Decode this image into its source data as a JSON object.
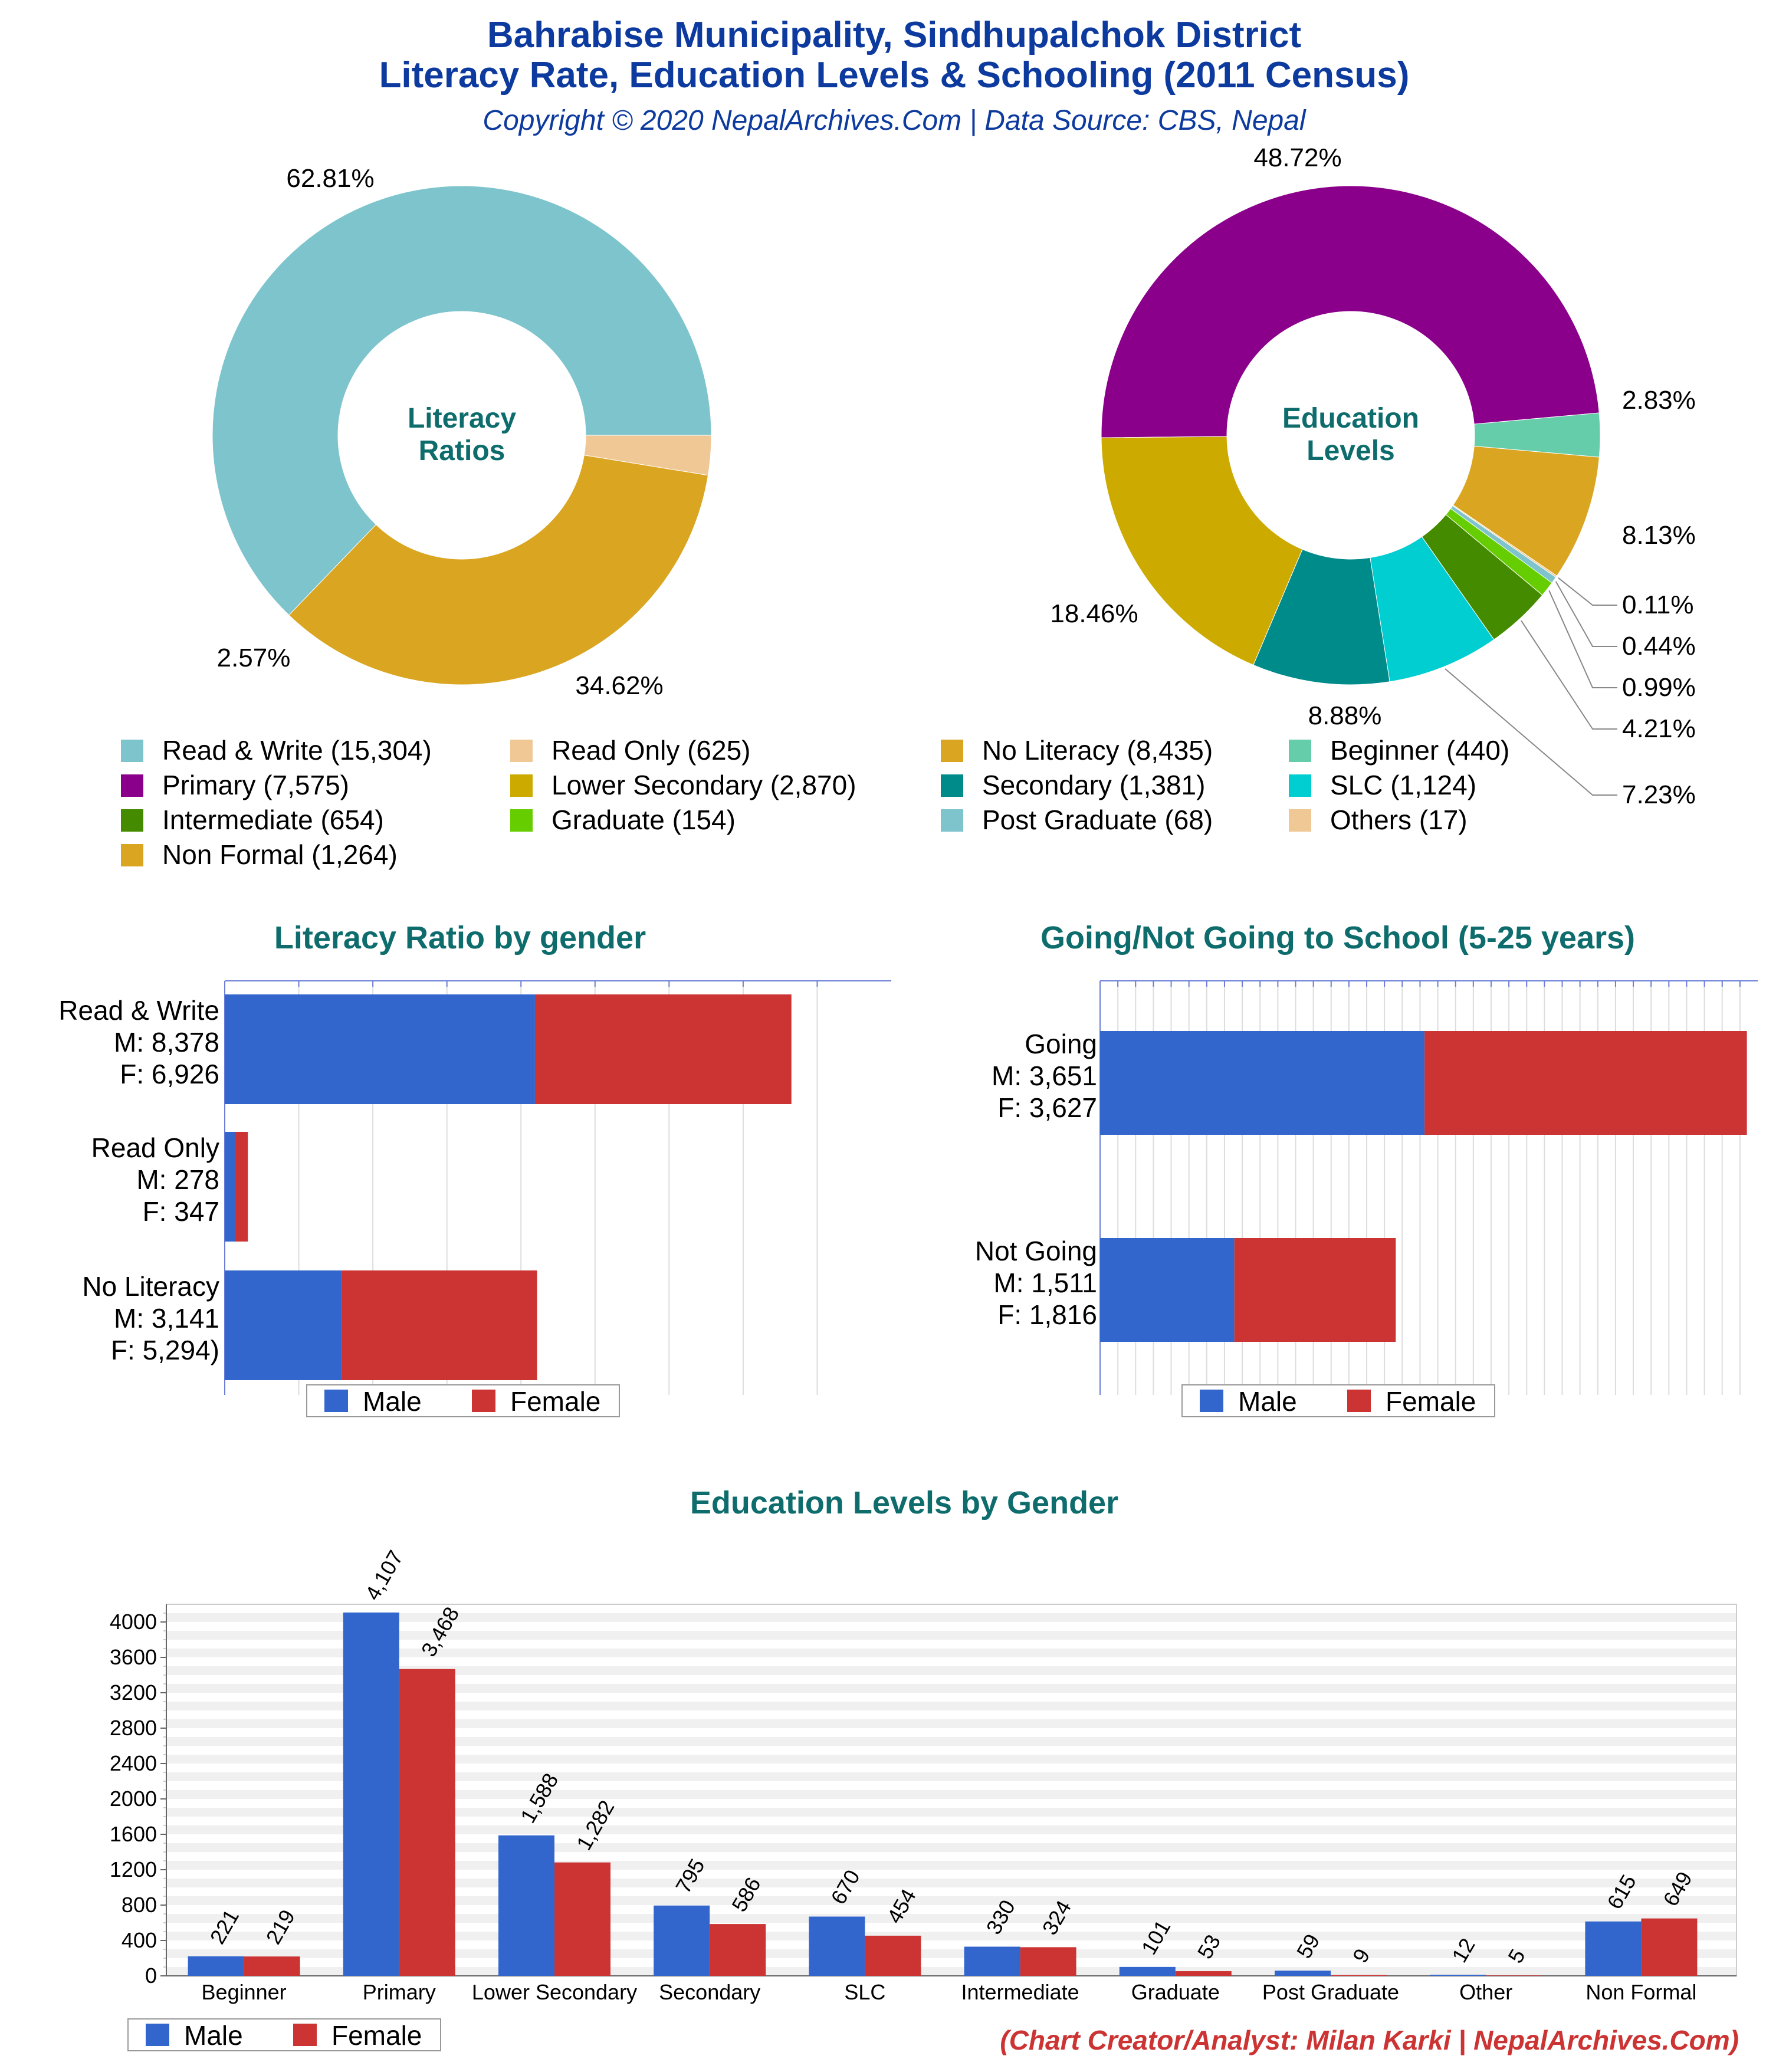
{
  "header": {
    "title_line1": "Bahrabise Municipality, Sindhupalchok District",
    "title_line2": "Literacy Rate, Education Levels & Schooling (2011 Census)",
    "subtitle": "Copyright © 2020 NepalArchives.Com | Data Source: CBS, Nepal"
  },
  "colors": {
    "title": "#0d3a9e",
    "section_title": "#0e6c6c",
    "male": "#3366cc",
    "female": "#cc3333",
    "credit": "#cc3333"
  },
  "legend_items": [
    {
      "label": "Read & Write (15,304)",
      "color": "#7ec4cc"
    },
    {
      "label": "Read Only (625)",
      "color": "#f0c896"
    },
    {
      "label": "No Literacy (8,435)",
      "color": "#daa520"
    },
    {
      "label": "Beginner (440)",
      "color": "#66cdaa"
    },
    {
      "label": "Primary (7,575)",
      "color": "#8b008b"
    },
    {
      "label": "Lower Secondary (2,870)",
      "color": "#ccaa00"
    },
    {
      "label": "Secondary (1,381)",
      "color": "#008b8b"
    },
    {
      "label": "SLC (1,124)",
      "color": "#00ced1"
    },
    {
      "label": "Intermediate (654)",
      "color": "#458b00"
    },
    {
      "label": "Graduate (154)",
      "color": "#66cd00"
    },
    {
      "label": "Post Graduate (68)",
      "color": "#7ec4cc"
    },
    {
      "label": "Others (17)",
      "color": "#f0c896"
    },
    {
      "label": "Non Formal (1,264)",
      "color": "#daa520"
    }
  ],
  "credit": "(Chart Creator/Analyst: Milan Karki | NepalArchives.Com)",
  "chart_data": [
    {
      "type": "pie",
      "center_label": [
        "Literacy",
        "Ratios"
      ],
      "categories": [
        "Read & Write",
        "Read Only",
        "No Literacy"
      ],
      "values": [
        15304,
        625,
        8435
      ],
      "percent_labels": [
        "62.81%",
        "2.57%",
        "34.62%"
      ],
      "colors": [
        "#7ec4cc",
        "#f0c896",
        "#daa520"
      ]
    },
    {
      "type": "pie",
      "center_label": [
        "Education",
        "Levels"
      ],
      "categories": [
        "Primary",
        "Beginner",
        "Non Formal",
        "Others",
        "Post Graduate",
        "Graduate",
        "Intermediate",
        "SLC",
        "Secondary",
        "Lower Secondary"
      ],
      "values": [
        7575,
        440,
        1264,
        17,
        68,
        154,
        654,
        1124,
        1381,
        2870
      ],
      "percent_labels": [
        "48.72%",
        "2.83%",
        "8.13%",
        "0.11%",
        "0.44%",
        "0.99%",
        "4.21%",
        "7.23%",
        "8.88%",
        "18.46%"
      ],
      "colors": [
        "#8b008b",
        "#66cdaa",
        "#daa520",
        "#f0c896",
        "#7ec4cc",
        "#66cd00",
        "#458b00",
        "#00ced1",
        "#008b8b",
        "#ccaa00"
      ]
    },
    {
      "type": "bar",
      "title": "Literacy Ratio by gender",
      "stacked": true,
      "orientation": "horizontal",
      "categories": [
        "Read & Write",
        "Read Only",
        "No Literacy"
      ],
      "category_labels": [
        [
          "Read & Write",
          "M: 8,378",
          "F: 6,926"
        ],
        [
          "Read Only",
          "M: 278",
          "F: 347"
        ],
        [
          "No Literacy",
          "M: 3,141",
          "F: 5,294)"
        ]
      ],
      "series": [
        {
          "name": "Male",
          "values": [
            8378,
            278,
            3141
          ]
        },
        {
          "name": "Female",
          "values": [
            6926,
            347,
            5294
          ]
        }
      ],
      "xlim": [
        0,
        18000
      ],
      "legend": [
        "Male",
        "Female"
      ]
    },
    {
      "type": "bar",
      "title": "Going/Not Going to School (5-25 years)",
      "stacked": true,
      "orientation": "horizontal",
      "categories": [
        "Going",
        "Not Going"
      ],
      "category_labels": [
        [
          "Going",
          "M: 3,651",
          "F: 3,627"
        ],
        [
          "Not Going",
          "M: 1,511",
          "F: 1,816"
        ]
      ],
      "series": [
        {
          "name": "Male",
          "values": [
            3651,
            1511
          ]
        },
        {
          "name": "Female",
          "values": [
            3627,
            1816
          ]
        }
      ],
      "xlim": [
        0,
        7400
      ],
      "legend": [
        "Male",
        "Female"
      ]
    },
    {
      "type": "bar",
      "title": "Education Levels by Gender",
      "categories": [
        "Beginner",
        "Primary",
        "Lower Secondary",
        "Secondary",
        "SLC",
        "Intermediate",
        "Graduate",
        "Post Graduate",
        "Other",
        "Non Formal"
      ],
      "series": [
        {
          "name": "Male",
          "values": [
            221,
            4107,
            1588,
            795,
            670,
            330,
            101,
            59,
            12,
            615
          ],
          "labels": [
            "221",
            "4,107",
            "1,588",
            "795",
            "670",
            "330",
            "101",
            "59",
            "12",
            "615"
          ]
        },
        {
          "name": "Female",
          "values": [
            219,
            3468,
            1282,
            586,
            454,
            324,
            53,
            9,
            5,
            649
          ],
          "labels": [
            "219",
            "3,468",
            "1,282",
            "586",
            "454",
            "324",
            "53",
            "9",
            "5",
            "649"
          ]
        }
      ],
      "yticks": [
        "0",
        "400",
        "800",
        "1200",
        "1600",
        "2000",
        "2400",
        "2800",
        "3200",
        "3600",
        "4000"
      ],
      "ylim": [
        0,
        4200
      ],
      "legend": [
        "Male",
        "Female"
      ]
    }
  ]
}
